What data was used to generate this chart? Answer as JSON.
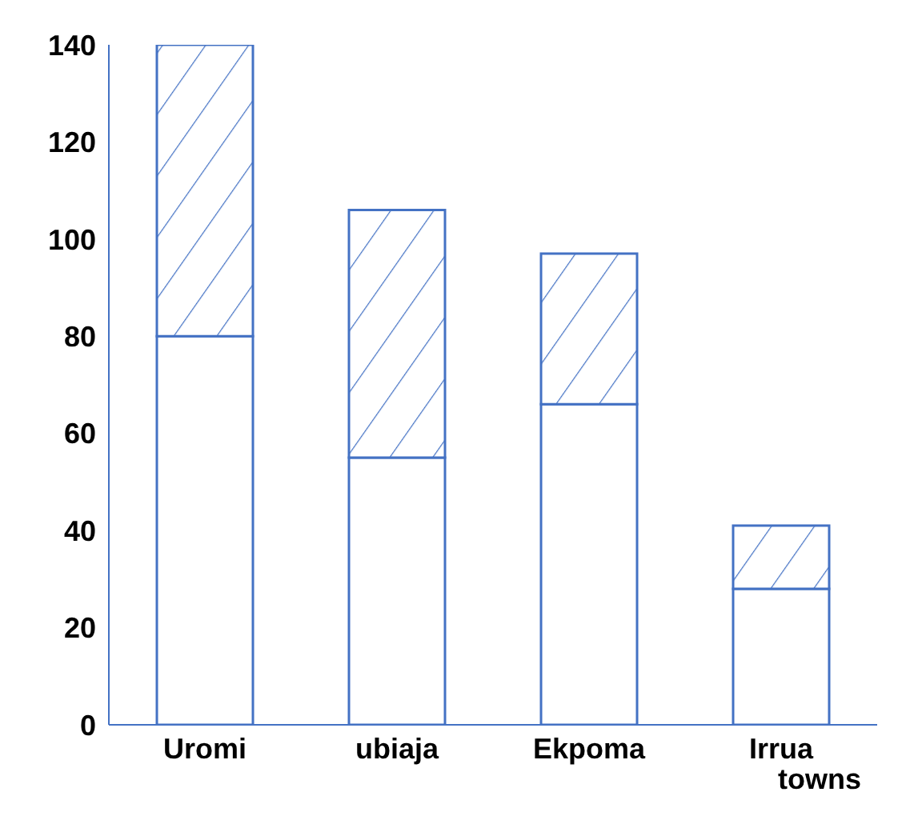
{
  "chart_data": {
    "type": "bar",
    "stacked": true,
    "categories": [
      "Uromi",
      "ubiaja",
      "Ekpoma",
      "Irrua"
    ],
    "xlabel": "towns",
    "series": [
      {
        "color": "#4472c4",
        "values": [
          80,
          55,
          66,
          28
        ]
      },
      {
        "color": "#4472c4",
        "values": [
          60,
          51,
          31,
          13
        ]
      }
    ],
    "ylim": [
      0,
      140
    ],
    "yticks": [
      0,
      20,
      40,
      60,
      80,
      100,
      120,
      140
    ],
    "grid": false,
    "legend": false
  }
}
